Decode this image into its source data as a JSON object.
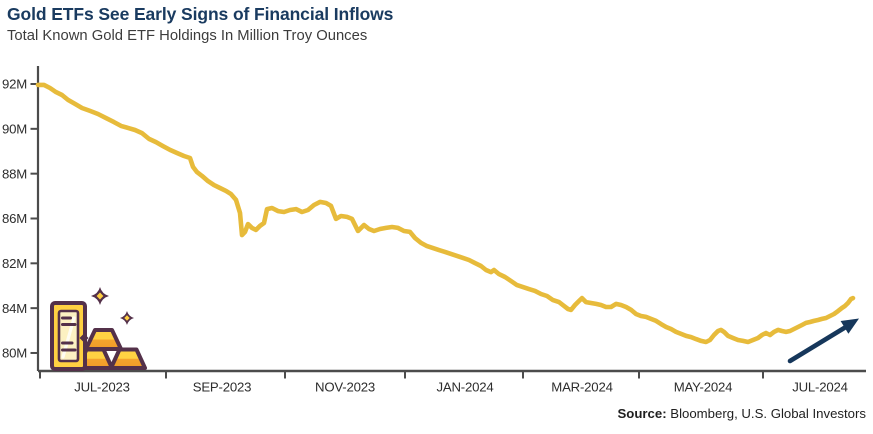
{
  "header": {
    "title": "Gold ETFs See Early Signs of Financial Inflows",
    "subtitle": "Total Known Gold ETF Holdings In Million Troy Ounces"
  },
  "source": {
    "label": "Source:",
    "text": " Bloomberg, U.S. Global Investors"
  },
  "colors": {
    "title": "#1a3b60",
    "subtitle": "#3c3c3c",
    "axis": "#4c4c4c",
    "tick_label": "#2d2d2d",
    "line": "#e7bb3b",
    "arrow": "#16375b",
    "icon_outline": "#54314a",
    "icon_gold": "#ffd042",
    "icon_orange": "#f4a42d",
    "icon_pale": "#fcf1c2"
  },
  "icons": {
    "gold_bars": "gold-bars-with-sparkles",
    "trend_arrow": "upward-trend-arrow"
  },
  "chart_data": {
    "type": "line",
    "title": "Gold ETFs See Early Signs of Financial Inflows",
    "subtitle": "Total Known Gold ETF Holdings In Million Troy Ounces",
    "series_name": "Total Known Gold ETF Holdings",
    "unit": "million troy ounces",
    "ylim": [
      80,
      92
    ],
    "grid": false,
    "x_tick_labels": [
      "JUL-2023",
      "SEP-2023",
      "NOV-2023",
      "JAN-2024",
      "MAR-2024",
      "MAY-2024",
      "JUL-2024"
    ],
    "y_tick_labels": [
      "92M",
      "90M",
      "88M",
      "86M",
      "82M",
      "84M",
      "80M"
    ],
    "y_tick_note": "labels shown exactly as printed in source image (82M/84M appear swapped); tick positions are linear from 92M top to 80M bottom",
    "points": [
      [
        0.0,
        91.96
      ],
      [
        0.0073,
        91.96
      ],
      [
        0.0146,
        91.82
      ],
      [
        0.0219,
        91.64
      ],
      [
        0.0292,
        91.51
      ],
      [
        0.0365,
        91.29
      ],
      [
        0.045,
        91.11
      ],
      [
        0.0535,
        90.93
      ],
      [
        0.0633,
        90.8
      ],
      [
        0.073,
        90.66
      ],
      [
        0.0827,
        90.48
      ],
      [
        0.0925,
        90.3
      ],
      [
        0.101,
        90.13
      ],
      [
        0.1095,
        90.04
      ],
      [
        0.118,
        89.95
      ],
      [
        0.1265,
        89.81
      ],
      [
        0.135,
        89.55
      ],
      [
        0.1436,
        89.41
      ],
      [
        0.1521,
        89.23
      ],
      [
        0.1606,
        89.06
      ],
      [
        0.1691,
        88.92
      ],
      [
        0.1776,
        88.79
      ],
      [
        0.1849,
        88.7
      ],
      [
        0.1886,
        88.3
      ],
      [
        0.1934,
        88.07
      ],
      [
        0.1995,
        87.9
      ],
      [
        0.2068,
        87.67
      ],
      [
        0.2141,
        87.49
      ],
      [
        0.2214,
        87.36
      ],
      [
        0.2287,
        87.23
      ],
      [
        0.2348,
        87.09
      ],
      [
        0.2409,
        86.83
      ],
      [
        0.2457,
        86.25
      ],
      [
        0.2482,
        85.26
      ],
      [
        0.2518,
        85.4
      ],
      [
        0.2555,
        85.75
      ],
      [
        0.2603,
        85.58
      ],
      [
        0.2652,
        85.49
      ],
      [
        0.2701,
        85.67
      ],
      [
        0.2749,
        85.8
      ],
      [
        0.2786,
        86.42
      ],
      [
        0.2847,
        86.47
      ],
      [
        0.292,
        86.33
      ],
      [
        0.2993,
        86.29
      ],
      [
        0.3066,
        86.38
      ],
      [
        0.3139,
        86.42
      ],
      [
        0.3212,
        86.29
      ],
      [
        0.3285,
        86.38
      ],
      [
        0.3358,
        86.6
      ],
      [
        0.3431,
        86.74
      ],
      [
        0.3504,
        86.69
      ],
      [
        0.3565,
        86.56
      ],
      [
        0.3625,
        85.98
      ],
      [
        0.3686,
        86.11
      ],
      [
        0.3759,
        86.07
      ],
      [
        0.382,
        85.98
      ],
      [
        0.3893,
        85.44
      ],
      [
        0.3966,
        85.71
      ],
      [
        0.4027,
        85.53
      ],
      [
        0.4088,
        85.44
      ],
      [
        0.4161,
        85.53
      ],
      [
        0.4234,
        85.58
      ],
      [
        0.4307,
        85.62
      ],
      [
        0.438,
        85.58
      ],
      [
        0.4453,
        85.44
      ],
      [
        0.4526,
        85.4
      ],
      [
        0.4586,
        85.13
      ],
      [
        0.4659,
        84.91
      ],
      [
        0.4732,
        84.77
      ],
      [
        0.4805,
        84.68
      ],
      [
        0.4878,
        84.59
      ],
      [
        0.4951,
        84.51
      ],
      [
        0.5024,
        84.42
      ],
      [
        0.5097,
        84.33
      ],
      [
        0.517,
        84.24
      ],
      [
        0.5243,
        84.15
      ],
      [
        0.5316,
        84.01
      ],
      [
        0.5389,
        83.88
      ],
      [
        0.545,
        83.7
      ],
      [
        0.5511,
        83.61
      ],
      [
        0.5547,
        83.7
      ],
      [
        0.5608,
        83.52
      ],
      [
        0.5681,
        83.39
      ],
      [
        0.5754,
        83.21
      ],
      [
        0.5827,
        83.03
      ],
      [
        0.59,
        82.94
      ],
      [
        0.5973,
        82.85
      ],
      [
        0.6046,
        82.77
      ],
      [
        0.6119,
        82.63
      ],
      [
        0.6192,
        82.54
      ],
      [
        0.6265,
        82.36
      ],
      [
        0.6338,
        82.27
      ],
      [
        0.6399,
        82.1
      ],
      [
        0.6448,
        81.96
      ],
      [
        0.6484,
        81.92
      ],
      [
        0.6533,
        82.14
      ],
      [
        0.6582,
        82.32
      ],
      [
        0.6618,
        82.45
      ],
      [
        0.6667,
        82.27
      ],
      [
        0.6728,
        82.23
      ],
      [
        0.6789,
        82.19
      ],
      [
        0.6849,
        82.14
      ],
      [
        0.691,
        82.05
      ],
      [
        0.6971,
        82.05
      ],
      [
        0.7032,
        82.19
      ],
      [
        0.7093,
        82.14
      ],
      [
        0.7154,
        82.05
      ],
      [
        0.7215,
        81.92
      ],
      [
        0.7275,
        81.74
      ],
      [
        0.7336,
        81.65
      ],
      [
        0.7397,
        81.61
      ],
      [
        0.7458,
        81.52
      ],
      [
        0.7519,
        81.43
      ],
      [
        0.758,
        81.29
      ],
      [
        0.7641,
        81.16
      ],
      [
        0.7701,
        81.07
      ],
      [
        0.7762,
        80.94
      ],
      [
        0.7823,
        80.85
      ],
      [
        0.7884,
        80.76
      ],
      [
        0.7945,
        80.71
      ],
      [
        0.8006,
        80.62
      ],
      [
        0.8067,
        80.54
      ],
      [
        0.8127,
        80.49
      ],
      [
        0.8175,
        80.58
      ],
      [
        0.8224,
        80.8
      ],
      [
        0.8273,
        80.98
      ],
      [
        0.8309,
        81.03
      ],
      [
        0.8346,
        80.94
      ],
      [
        0.8394,
        80.76
      ],
      [
        0.8455,
        80.67
      ],
      [
        0.8516,
        80.58
      ],
      [
        0.8577,
        80.54
      ],
      [
        0.8637,
        80.49
      ],
      [
        0.8698,
        80.58
      ],
      [
        0.8759,
        80.67
      ],
      [
        0.8808,
        80.8
      ],
      [
        0.8856,
        80.89
      ],
      [
        0.8905,
        80.8
      ],
      [
        0.8954,
        80.94
      ],
      [
        0.9002,
        81.03
      ],
      [
        0.9051,
        80.98
      ],
      [
        0.91,
        80.94
      ],
      [
        0.9148,
        80.98
      ],
      [
        0.9197,
        81.07
      ],
      [
        0.9246,
        81.16
      ],
      [
        0.9294,
        81.25
      ],
      [
        0.9343,
        81.34
      ],
      [
        0.9392,
        81.38
      ],
      [
        0.944,
        81.43
      ],
      [
        0.9489,
        81.47
      ],
      [
        0.9538,
        81.52
      ],
      [
        0.9586,
        81.56
      ],
      [
        0.9635,
        81.65
      ],
      [
        0.9684,
        81.74
      ],
      [
        0.9732,
        81.87
      ],
      [
        0.9781,
        82.01
      ],
      [
        0.9818,
        82.1
      ],
      [
        0.9854,
        82.23
      ],
      [
        0.9891,
        82.41
      ],
      [
        0.9915,
        82.45
      ]
    ],
    "annotations": [
      {
        "name": "trend-arrow",
        "meaning": "rising holdings at right edge"
      },
      {
        "name": "gold-bars-icon",
        "meaning": "decorative gold bullion illustration"
      }
    ]
  }
}
